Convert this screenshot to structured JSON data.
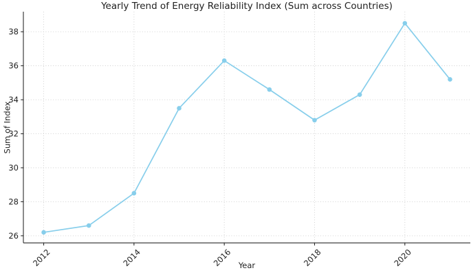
{
  "chart_data": {
    "type": "line",
    "title": "Yearly Trend of Energy Reliability Index (Sum across Countries)",
    "xlabel": "Year",
    "ylabel": "Sum of Index",
    "x": [
      2012,
      2013,
      2014,
      2015,
      2016,
      2017,
      2018,
      2019,
      2020,
      2021
    ],
    "values": [
      26.2,
      26.6,
      28.5,
      33.5,
      36.3,
      34.6,
      32.8,
      34.3,
      38.5,
      35.2
    ],
    "xticks": [
      2012,
      2014,
      2016,
      2018,
      2020
    ],
    "yticks": [
      26,
      28,
      30,
      32,
      34,
      36,
      38
    ],
    "xlim": [
      2011.55,
      2021.45
    ],
    "ylim": [
      25.58,
      39.18
    ],
    "grid": true,
    "grid_style": "dotted",
    "legend": "none",
    "marker": "circle",
    "x_tick_rotation_deg": 45,
    "colors": {
      "line": "#87CEEB",
      "marker": "#87CEEB",
      "grid": "#cccccc",
      "spine": "#2b2b2b",
      "text": "#1f1f1f"
    }
  }
}
